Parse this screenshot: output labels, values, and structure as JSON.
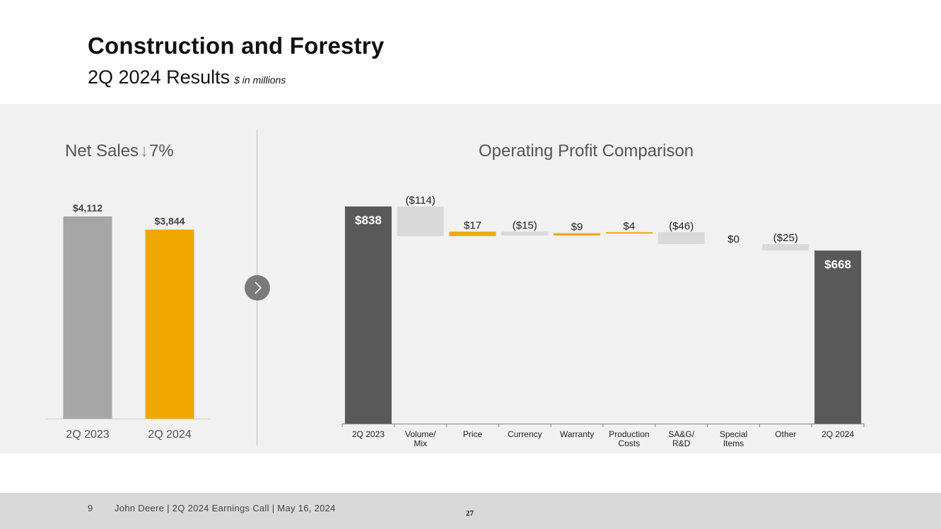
{
  "header": {
    "title": "Construction and Forestry",
    "subtitle": "2Q 2024 Results",
    "unit_note": "$ in millions"
  },
  "net_sales": {
    "title": "Net Sales",
    "direction_icon": "down-arrow-icon",
    "change_label": "7%"
  },
  "operating_profit": {
    "title": "Operating Profit Comparison"
  },
  "chart_data": [
    {
      "type": "bar",
      "title": "Net Sales",
      "categories": [
        "2Q 2023",
        "2Q 2024"
      ],
      "values": [
        4112,
        3844
      ],
      "value_labels": [
        "$4,112",
        "$3,844"
      ],
      "colors": [
        "#a6a6a6",
        "#f0a800"
      ],
      "ylim": [
        0,
        4112
      ],
      "grid": false,
      "legend": "none"
    },
    {
      "type": "bar",
      "subtype": "waterfall",
      "title": "Operating Profit Comparison",
      "categories": [
        "2Q 2023",
        "Volume/ Mix",
        "Price",
        "Currency",
        "Warranty",
        "Production Costs",
        "SA&G/ R&D",
        "Special Items",
        "Other",
        "2Q 2024"
      ],
      "category_lines": [
        [
          "2Q 2023"
        ],
        [
          "Volume/",
          "Mix"
        ],
        [
          "Price"
        ],
        [
          "Currency"
        ],
        [
          "Warranty"
        ],
        [
          "Production",
          "Costs"
        ],
        [
          "SA&G/",
          "R&D"
        ],
        [
          "Special",
          "Items"
        ],
        [
          "Other"
        ],
        [
          "2Q 2024"
        ]
      ],
      "values": [
        838,
        -114,
        17,
        -15,
        9,
        4,
        -46,
        0,
        -25,
        668
      ],
      "kinds": [
        "total",
        "delta",
        "delta",
        "delta",
        "delta",
        "delta",
        "delta",
        "delta",
        "delta",
        "total"
      ],
      "value_labels": [
        "$838",
        "($114)",
        "$17",
        "($15)",
        "$9",
        "$4",
        "($46)",
        "$0",
        "($25)",
        "$668"
      ],
      "colors": {
        "total": "#595959",
        "increase": "#f0a800",
        "decrease": "#d9d9d9"
      },
      "ylim": [
        0,
        900
      ],
      "grid": false,
      "legend": "none"
    }
  ],
  "footer": {
    "page_number": "9",
    "text": "John Deere | 2Q 2024 Earnings Call | May 16, 2024",
    "slide_number": "27"
  }
}
